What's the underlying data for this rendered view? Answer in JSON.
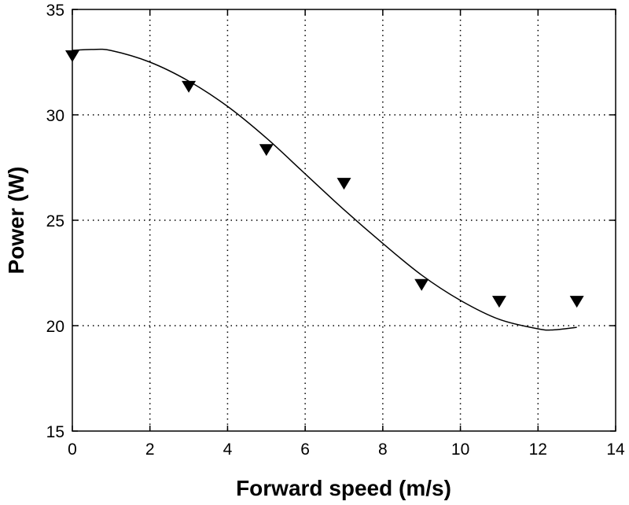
{
  "chart_data": {
    "type": "scatter",
    "title": "",
    "xlabel": "Forward speed (m/s)",
    "ylabel": "Power (W)",
    "xlim": [
      0,
      14
    ],
    "ylim": [
      15,
      35
    ],
    "xticks": [
      "0",
      "2",
      "4",
      "6",
      "8",
      "10",
      "12",
      "14"
    ],
    "yticks": [
      "15",
      "20",
      "25",
      "30",
      "35"
    ],
    "grid": true,
    "series": [
      {
        "kind": "markers",
        "marker": "triangle-down",
        "color": "#000000",
        "x": [
          0,
          3,
          5,
          7,
          9,
          11,
          13
        ],
        "y": [
          32.8,
          31.35,
          28.35,
          26.75,
          21.95,
          21.15,
          21.15
        ]
      },
      {
        "kind": "line",
        "color": "#000000",
        "x": [
          0,
          0.5,
          1,
          2,
          3,
          4,
          5,
          6,
          7,
          8,
          9,
          10,
          11,
          12,
          12.4,
          13
        ],
        "y": [
          33.06,
          33.1,
          33.05,
          32.5,
          31.6,
          30.4,
          28.9,
          27.2,
          25.5,
          23.9,
          22.4,
          21.2,
          20.3,
          19.85,
          19.8,
          19.92
        ]
      }
    ]
  }
}
